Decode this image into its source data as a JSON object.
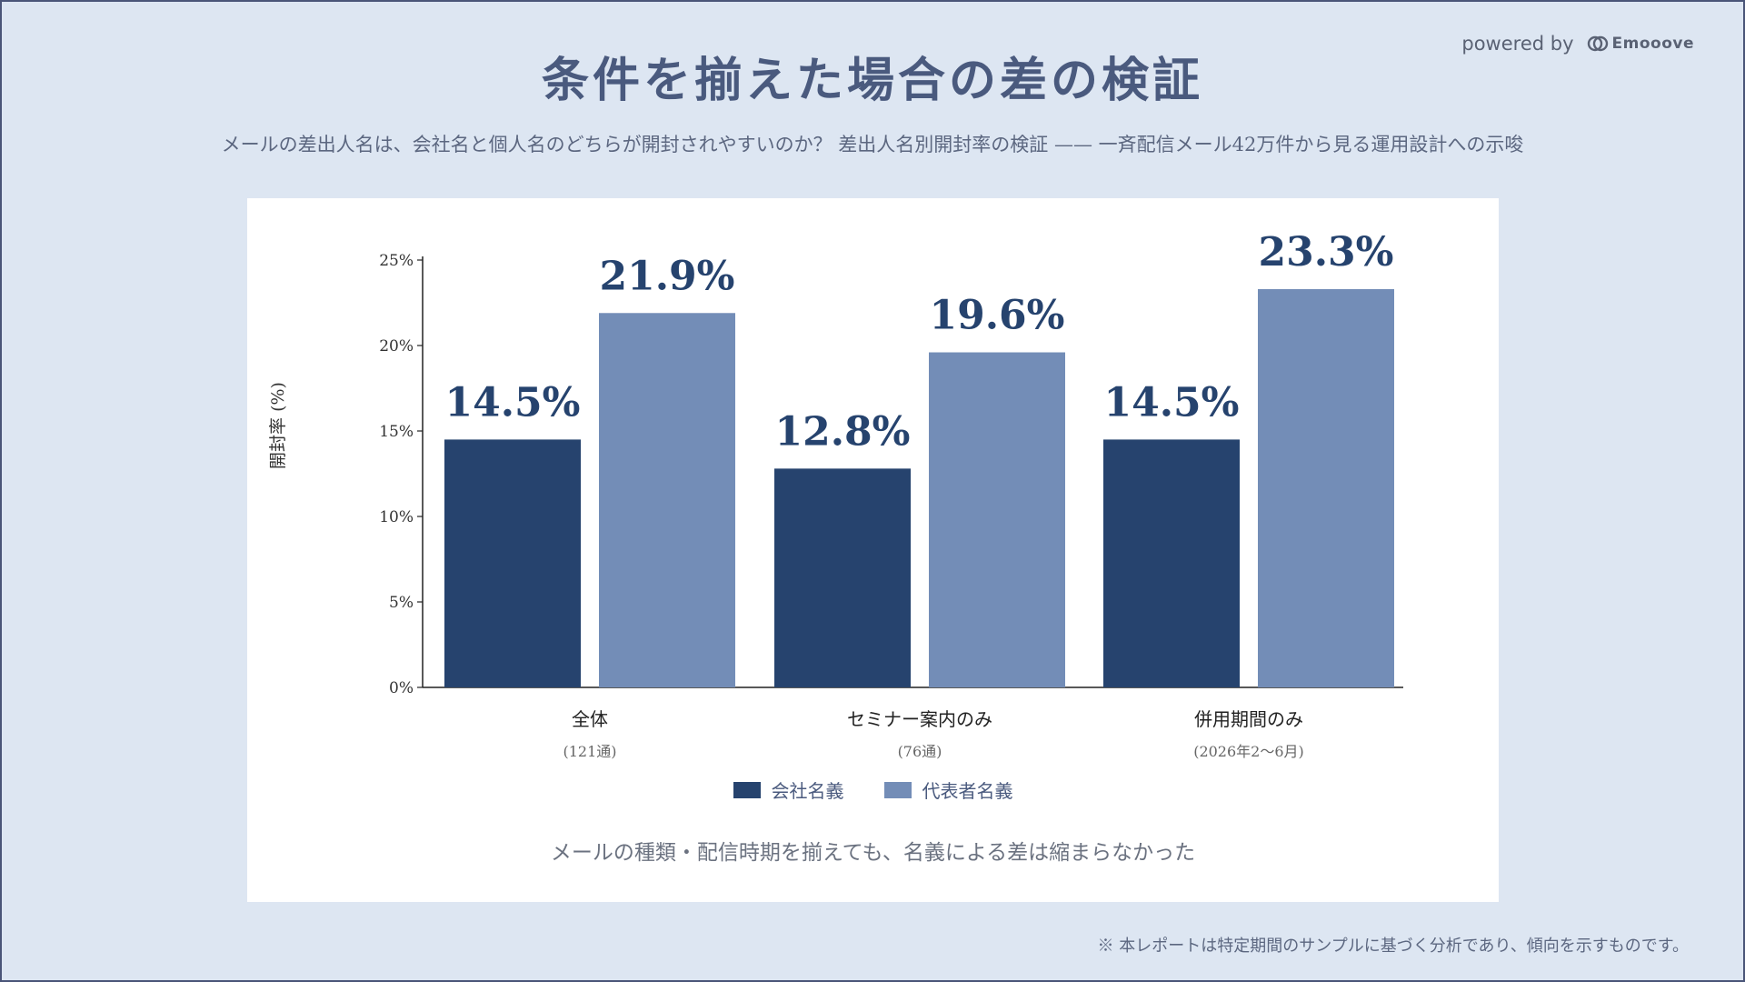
{
  "header": {
    "title": "条件を揃えた場合の差の検証",
    "subtitle": "メールの差出人名は、会社名と個人名のどちらが開封されやすいのか？ 差出人名別開封率の検証 —— 一斉配信メール42万件から見る運用設計への示唆",
    "powered_by": "powered by",
    "brand_name": "Emooove"
  },
  "chart_data": {
    "type": "bar",
    "categories": [
      "全体",
      "セミナー案内のみ",
      "併用期間のみ"
    ],
    "category_sublabels": [
      "(121通)",
      "(76通)",
      "(2026年2〜6月)"
    ],
    "series": [
      {
        "name": "会社名義",
        "values": [
          14.5,
          12.8,
          14.5
        ],
        "labels": [
          "14.5%",
          "12.8%",
          "14.5%"
        ],
        "color": "#26436e"
      },
      {
        "name": "代表者名義",
        "values": [
          21.9,
          19.6,
          23.3
        ],
        "labels": [
          "21.9%",
          "19.6%",
          "23.3%"
        ],
        "color": "#738db7"
      }
    ],
    "ylabel": "開封率 (%)",
    "ylim": [
      0,
      25
    ],
    "yticks": [
      0,
      5,
      10,
      15,
      20,
      25
    ],
    "ytick_labels": [
      "0%",
      "5%",
      "10%",
      "15%",
      "20%",
      "25%"
    ],
    "grid": false,
    "legend": "bottom-center"
  },
  "caption": "メールの種類・配信時期を揃えても、名義による差は縮まらなかった",
  "footnote": "※ 本レポートは特定期間のサンプルに基づく分析であり、傾向を示すものです。"
}
